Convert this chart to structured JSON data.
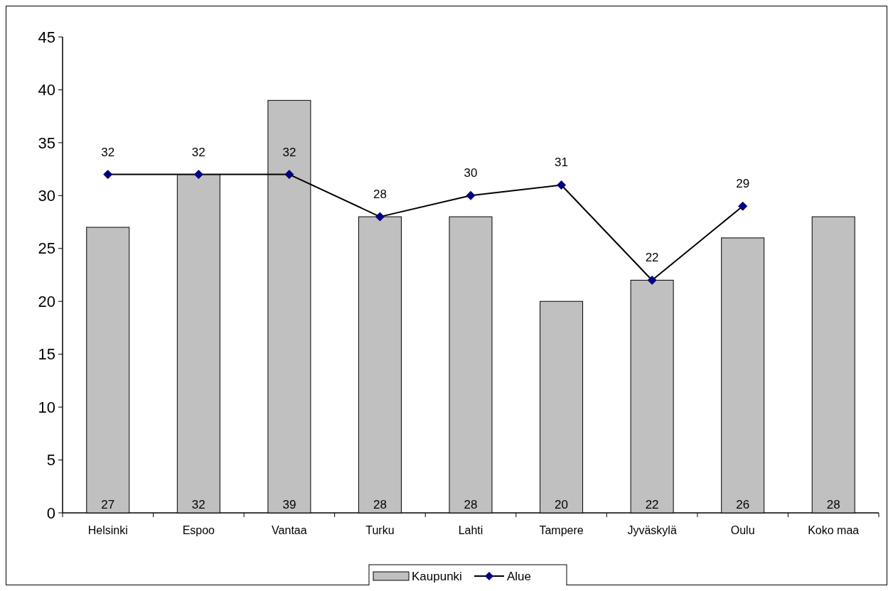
{
  "chart_data": {
    "type": "bar",
    "categories": [
      "Helsinki",
      "Espoo",
      "Vantaa",
      "Turku",
      "Lahti",
      "Tampere",
      "Jyväskylä",
      "Oulu",
      "Koko maa"
    ],
    "series": [
      {
        "name": "Kaupunki",
        "color": "#c0c0c0",
        "values": [
          27,
          32,
          39,
          28,
          28,
          20,
          22,
          26,
          28
        ]
      },
      {
        "name": "Alue",
        "type": "line",
        "color": "#000080",
        "values": [
          32,
          32,
          32,
          28,
          30,
          31,
          22,
          29,
          null
        ]
      }
    ],
    "ylim": [
      0,
      45
    ],
    "yticks": [
      0,
      5,
      10,
      15,
      20,
      25,
      30,
      35,
      40,
      45
    ],
    "grid": false,
    "legend": "bottom",
    "marker": "diamond",
    "data_labels": true
  }
}
